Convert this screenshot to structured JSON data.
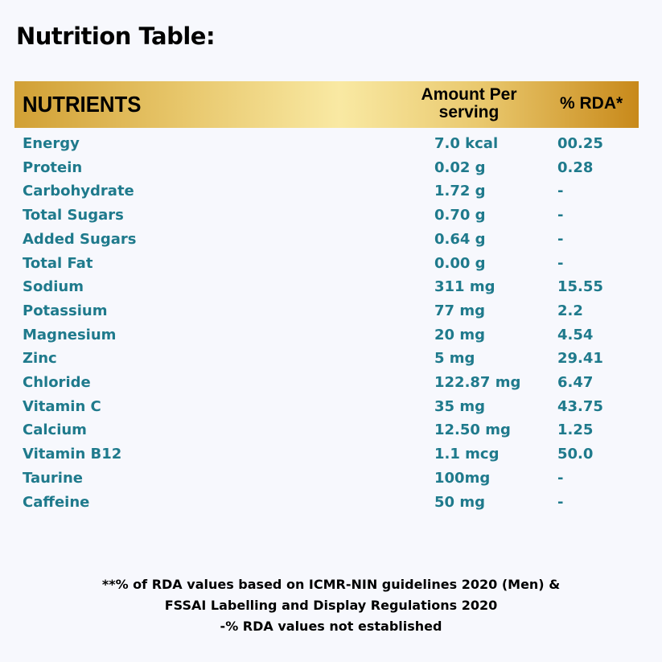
{
  "title": "Nutrition Table:",
  "header": {
    "nutrients": "NUTRIENTS",
    "amount_line1": "Amount Per",
    "amount_line2": "serving",
    "rda": "% RDA*"
  },
  "rows": [
    {
      "name": "Energy",
      "amount": "7.0 kcal",
      "rda": "00.25"
    },
    {
      "name": "Protein",
      "amount": "0.02 g",
      "rda": "0.28"
    },
    {
      "name": "Carbohydrate",
      "amount": "1.72 g",
      "rda": "-"
    },
    {
      "name": "Total Sugars",
      "amount": "0.70 g",
      "rda": "-"
    },
    {
      "name": "Added Sugars",
      "amount": "0.64 g",
      "rda": "-"
    },
    {
      "name": "Total Fat",
      "amount": "0.00 g",
      "rda": "-"
    },
    {
      "name": "Sodium",
      "amount": "311 mg",
      "rda": "15.55"
    },
    {
      "name": "Potassium",
      "amount": "77 mg",
      "rda": "2.2"
    },
    {
      "name": "Magnesium",
      "amount": "20 mg",
      "rda": "4.54"
    },
    {
      "name": "Zinc",
      "amount": "5 mg",
      "rda": "29.41"
    },
    {
      "name": "Chloride",
      "amount": "122.87 mg",
      "rda": "6.47"
    },
    {
      "name": "Vitamin C",
      "amount": "35 mg",
      "rda": "43.75"
    },
    {
      "name": "Calcium",
      "amount": "12.50 mg",
      "rda": "1.25"
    },
    {
      "name": "Vitamin B12",
      "amount": "1.1 mcg",
      "rda": "50.0"
    },
    {
      "name": "Taurine",
      "amount": "100mg",
      "rda": "-"
    },
    {
      "name": "Caffeine",
      "amount": "50 mg",
      "rda": "-"
    }
  ],
  "footnotes": [
    "**% of RDA values based on ICMR-NIN guidelines 2020 (Men) &",
    "FSSAI Labelling and Display Regulations 2020",
    "-% RDA values not established"
  ]
}
